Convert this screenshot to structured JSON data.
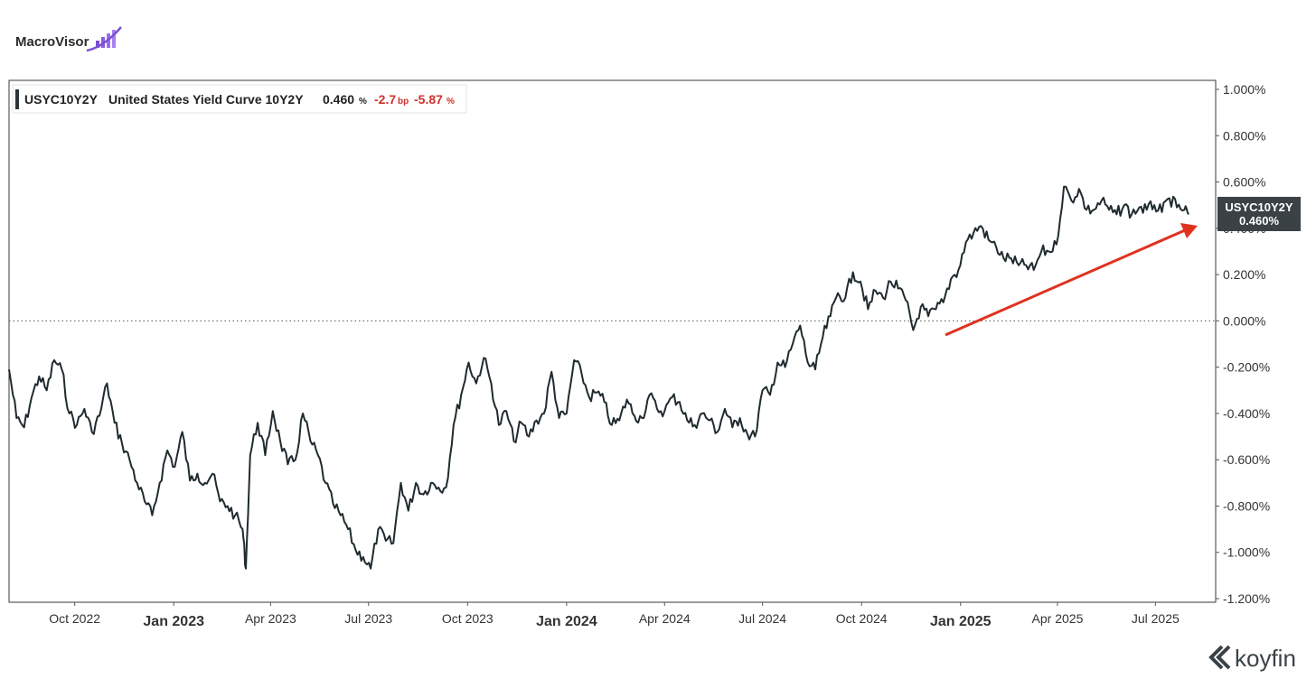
{
  "branding": {
    "top_logo_text": "MacroVisor",
    "bottom_logo_text": "koyfin"
  },
  "legend": {
    "ticker": "USYC10Y2Y",
    "name": "United States Yield Curve 10Y2Y",
    "last_value": "0.460",
    "last_value_unit": "%",
    "change": "-2.7",
    "change_unit": "bp",
    "change_pct": "-5.87",
    "change_pct_unit": "%"
  },
  "price_tag": {
    "ticker": "USYC10Y2Y",
    "value": "0.460%"
  },
  "colors": {
    "line": "#1f2b2f",
    "negative": "#d0312d",
    "arrow": "#e0321f",
    "tag_bg": "#3a4246"
  },
  "chart_data": {
    "type": "line",
    "title": "",
    "xlabel": "",
    "ylabel": "",
    "ylim": [
      -1.2,
      1.0
    ],
    "xlim": [
      "2022-08-01",
      "2025-08-05"
    ],
    "y_ticks": [
      1.0,
      0.8,
      0.6,
      0.4,
      0.2,
      0.0,
      -0.2,
      -0.4,
      -0.6,
      -0.8,
      -1.0,
      -1.2
    ],
    "y_tick_labels": [
      "1.000%",
      "0.800%",
      "0.600%",
      "0.400%",
      "0.200%",
      "0.000%",
      "-0.200%",
      "-0.400%",
      "-0.600%",
      "-0.800%",
      "-1.000%",
      "-1.200%"
    ],
    "x_ticks": [
      {
        "date": "2022-10-01",
        "label": "Oct 2022",
        "bold": false
      },
      {
        "date": "2023-01-01",
        "label": "Jan 2023",
        "bold": true
      },
      {
        "date": "2023-04-01",
        "label": "Apr 2023",
        "bold": false
      },
      {
        "date": "2023-07-01",
        "label": "Jul 2023",
        "bold": false
      },
      {
        "date": "2023-10-01",
        "label": "Oct 2023",
        "bold": false
      },
      {
        "date": "2024-01-01",
        "label": "Jan 2024",
        "bold": true
      },
      {
        "date": "2024-04-01",
        "label": "Apr 2024",
        "bold": false
      },
      {
        "date": "2024-07-01",
        "label": "Jul 2024",
        "bold": false
      },
      {
        "date": "2024-10-01",
        "label": "Oct 2024",
        "bold": false
      },
      {
        "date": "2025-01-01",
        "label": "Jan 2025",
        "bold": true
      },
      {
        "date": "2025-04-01",
        "label": "Apr 2025",
        "bold": false
      },
      {
        "date": "2025-07-01",
        "label": "Jul 2025",
        "bold": false
      }
    ],
    "zero_line": 0.0,
    "grid": false,
    "legend_position": "top-left",
    "series": [
      {
        "name": "USYC10Y2Y",
        "x": [
          "2022-08-01",
          "2022-08-08",
          "2022-08-15",
          "2022-08-22",
          "2022-08-29",
          "2022-09-05",
          "2022-09-12",
          "2022-09-19",
          "2022-09-26",
          "2022-10-03",
          "2022-10-10",
          "2022-10-17",
          "2022-10-24",
          "2022-10-31",
          "2022-11-07",
          "2022-11-14",
          "2022-11-21",
          "2022-11-28",
          "2022-12-05",
          "2022-12-12",
          "2022-12-19",
          "2022-12-26",
          "2023-01-02",
          "2023-01-09",
          "2023-01-16",
          "2023-01-23",
          "2023-01-30",
          "2023-02-06",
          "2023-02-13",
          "2023-02-20",
          "2023-02-27",
          "2023-03-06",
          "2023-03-09",
          "2023-03-13",
          "2023-03-20",
          "2023-03-27",
          "2023-04-03",
          "2023-04-10",
          "2023-04-17",
          "2023-04-24",
          "2023-05-01",
          "2023-05-08",
          "2023-05-15",
          "2023-05-22",
          "2023-05-29",
          "2023-06-05",
          "2023-06-12",
          "2023-06-19",
          "2023-06-26",
          "2023-07-03",
          "2023-07-10",
          "2023-07-17",
          "2023-07-24",
          "2023-07-31",
          "2023-08-07",
          "2023-08-14",
          "2023-08-21",
          "2023-08-28",
          "2023-09-04",
          "2023-09-11",
          "2023-09-18",
          "2023-09-25",
          "2023-10-02",
          "2023-10-09",
          "2023-10-16",
          "2023-10-23",
          "2023-10-30",
          "2023-11-06",
          "2023-11-13",
          "2023-11-20",
          "2023-11-27",
          "2023-12-04",
          "2023-12-11",
          "2023-12-18",
          "2023-12-25",
          "2024-01-01",
          "2024-01-08",
          "2024-01-15",
          "2024-01-22",
          "2024-01-29",
          "2024-02-05",
          "2024-02-12",
          "2024-02-19",
          "2024-02-26",
          "2024-03-04",
          "2024-03-11",
          "2024-03-18",
          "2024-03-25",
          "2024-04-01",
          "2024-04-08",
          "2024-04-15",
          "2024-04-22",
          "2024-04-29",
          "2024-05-06",
          "2024-05-13",
          "2024-05-20",
          "2024-05-27",
          "2024-06-03",
          "2024-06-10",
          "2024-06-17",
          "2024-06-24",
          "2024-07-01",
          "2024-07-08",
          "2024-07-15",
          "2024-07-22",
          "2024-07-29",
          "2024-08-05",
          "2024-08-12",
          "2024-08-19",
          "2024-08-26",
          "2024-09-02",
          "2024-09-09",
          "2024-09-16",
          "2024-09-23",
          "2024-09-30",
          "2024-10-07",
          "2024-10-14",
          "2024-10-21",
          "2024-10-28",
          "2024-11-04",
          "2024-11-11",
          "2024-11-18",
          "2024-11-25",
          "2024-12-02",
          "2024-12-09",
          "2024-12-16",
          "2024-12-23",
          "2024-12-30",
          "2025-01-06",
          "2025-01-13",
          "2025-01-20",
          "2025-01-27",
          "2025-02-03",
          "2025-02-10",
          "2025-02-17",
          "2025-02-24",
          "2025-03-03",
          "2025-03-10",
          "2025-03-17",
          "2025-03-24",
          "2025-03-31",
          "2025-04-07",
          "2025-04-14",
          "2025-04-21",
          "2025-04-28",
          "2025-05-05",
          "2025-05-12",
          "2025-05-19",
          "2025-05-26",
          "2025-06-02",
          "2025-06-09",
          "2025-06-16",
          "2025-06-23",
          "2025-06-30",
          "2025-07-07",
          "2025-07-14",
          "2025-07-21",
          "2025-07-28",
          "2025-08-01"
        ],
        "values": [
          -0.21,
          -0.42,
          -0.46,
          -0.33,
          -0.24,
          -0.3,
          -0.17,
          -0.21,
          -0.4,
          -0.45,
          -0.38,
          -0.48,
          -0.41,
          -0.27,
          -0.44,
          -0.53,
          -0.6,
          -0.7,
          -0.78,
          -0.84,
          -0.7,
          -0.56,
          -0.63,
          -0.48,
          -0.69,
          -0.66,
          -0.7,
          -0.66,
          -0.78,
          -0.8,
          -0.84,
          -0.9,
          -1.07,
          -0.58,
          -0.44,
          -0.58,
          -0.39,
          -0.52,
          -0.62,
          -0.6,
          -0.4,
          -0.52,
          -0.58,
          -0.7,
          -0.79,
          -0.84,
          -0.9,
          -0.99,
          -1.02,
          -1.07,
          -0.9,
          -0.95,
          -0.96,
          -0.7,
          -0.82,
          -0.7,
          -0.75,
          -0.7,
          -0.72,
          -0.72,
          -0.45,
          -0.32,
          -0.18,
          -0.27,
          -0.16,
          -0.27,
          -0.45,
          -0.39,
          -0.52,
          -0.44,
          -0.5,
          -0.43,
          -0.4,
          -0.22,
          -0.42,
          -0.4,
          -0.17,
          -0.23,
          -0.33,
          -0.31,
          -0.35,
          -0.45,
          -0.43,
          -0.34,
          -0.41,
          -0.42,
          -0.32,
          -0.38,
          -0.39,
          -0.33,
          -0.35,
          -0.43,
          -0.45,
          -0.4,
          -0.43,
          -0.48,
          -0.38,
          -0.46,
          -0.42,
          -0.49,
          -0.5,
          -0.3,
          -0.32,
          -0.18,
          -0.2,
          -0.1,
          -0.02,
          -0.18,
          -0.21,
          -0.07,
          0.02,
          0.12,
          0.1,
          0.21,
          0.17,
          0.05,
          0.13,
          0.1,
          0.17,
          0.14,
          0.09,
          -0.04,
          0.06,
          0.02,
          0.05,
          0.08,
          0.18,
          0.22,
          0.34,
          0.38,
          0.41,
          0.35,
          0.32,
          0.27,
          0.27,
          0.24,
          0.24,
          0.22,
          0.3,
          0.3,
          0.33,
          0.58,
          0.52,
          0.57,
          0.48,
          0.48,
          0.52,
          0.48,
          0.46,
          0.5,
          0.46,
          0.49,
          0.48,
          0.5,
          0.47,
          0.53,
          0.49,
          0.48,
          0.46
        ]
      }
    ]
  }
}
